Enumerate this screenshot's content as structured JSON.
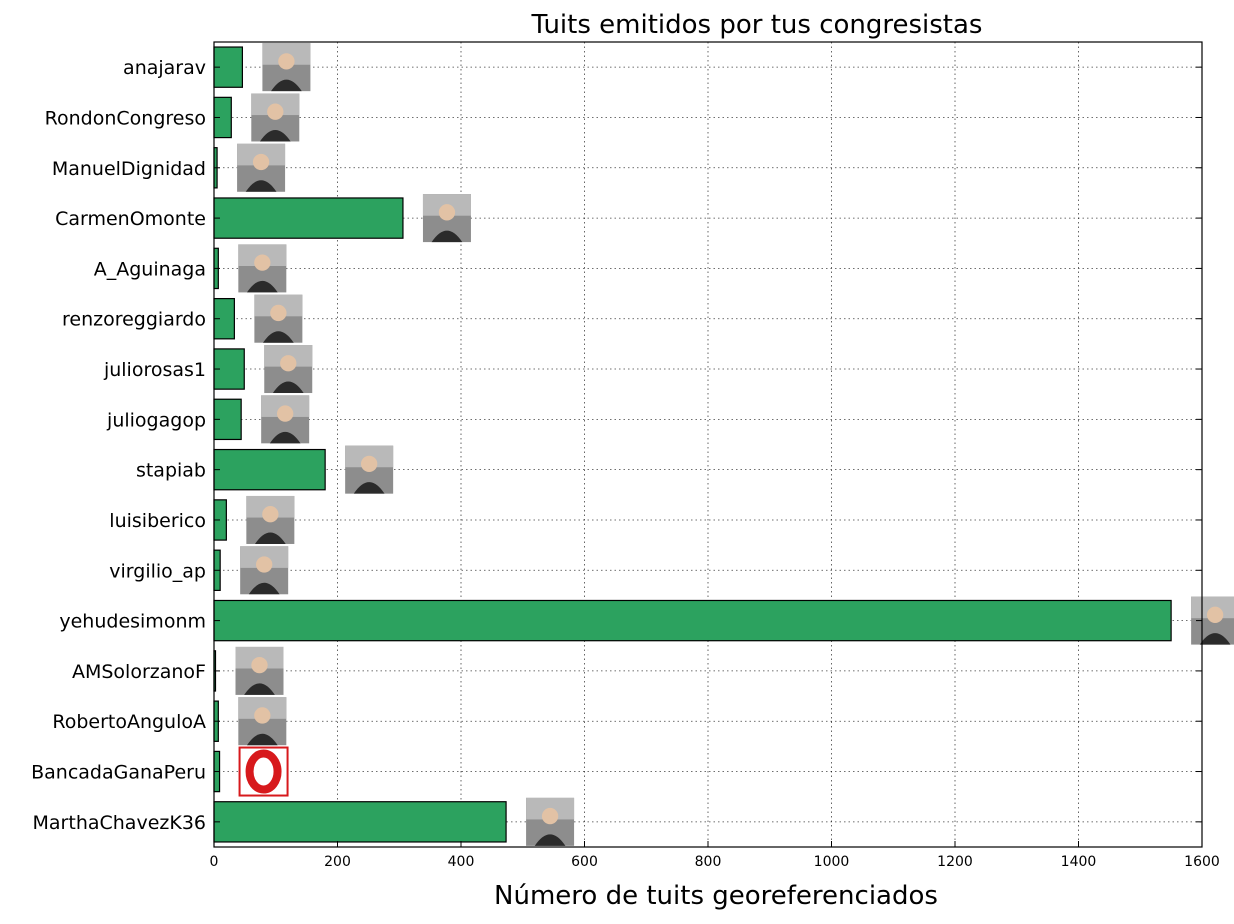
{
  "chart_data": {
    "type": "bar",
    "orientation": "horizontal",
    "title": "Tuits emitidos por tus congresistas",
    "xlabel": "Número de tuits georeferenciados",
    "ylabel": "",
    "xlim": [
      0,
      1600
    ],
    "xticks": [
      0,
      200,
      400,
      600,
      800,
      1000,
      1200,
      1400,
      1600
    ],
    "grid": true,
    "bar_color": "#2ca25f",
    "categories": [
      "anajarav",
      "RondonCongreso",
      "ManuelDignidad",
      "CarmenOmonte",
      "A_Aguinaga",
      "renzoreggiardo",
      "juliorosas1",
      "juliogagop",
      "stapiab",
      "luisiberico",
      "virgilio_ap",
      "yehudesimonm",
      "AMSolorzanoF",
      "RobertoAnguloA",
      "BancadaGanaPeru",
      "MarthaChavezK36"
    ],
    "values": [
      46,
      28,
      5,
      306,
      7,
      33,
      49,
      44,
      180,
      20,
      10,
      1550,
      2,
      7,
      9,
      473
    ],
    "avatar_icons": [
      "person-photo",
      "person-photo",
      "person-photo",
      "person-photo",
      "person-photo",
      "person-photo",
      "person-photo",
      "person-photo",
      "person-photo",
      "person-photo",
      "person-photo",
      "person-photo",
      "person-photo",
      "person-photo",
      "party-logo",
      "person-photo"
    ]
  }
}
